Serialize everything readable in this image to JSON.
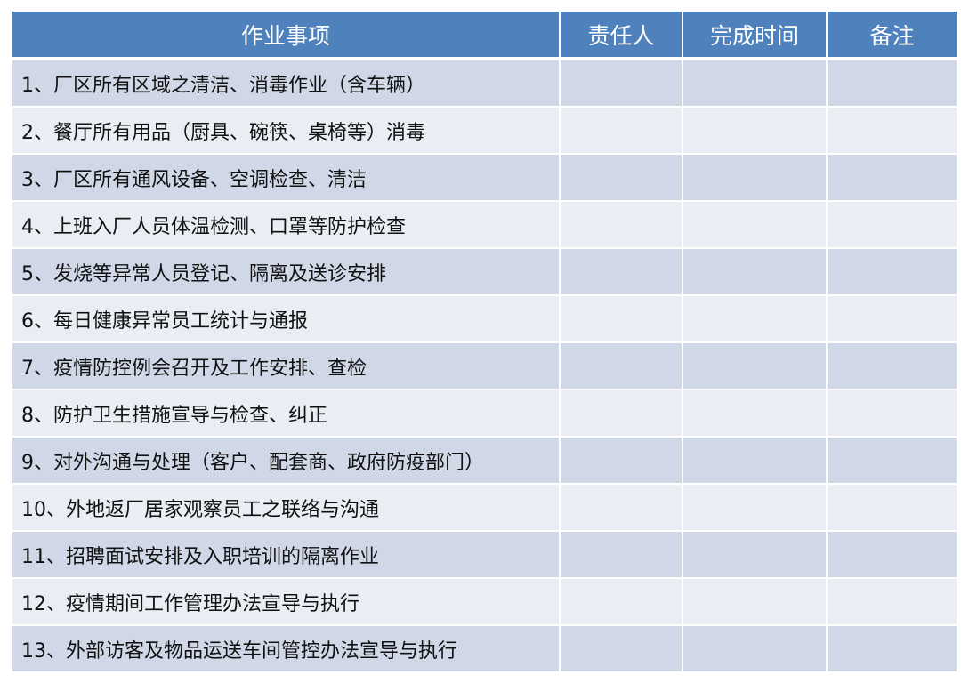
{
  "table": {
    "headers": [
      "作业事项",
      "责任人",
      "完成时间",
      "备注"
    ],
    "rows": [
      "1、厂区所有区域之清洁、消毒作业（含车辆）",
      "2、餐厅所有用品（厨具、碗筷、桌椅等）消毒",
      "3、厂区所有通风设备、空调检查、清洁",
      "4、上班入厂人员体温检测、口罩等防护检查",
      "5、发烧等异常人员登记、隔离及送诊安排",
      "6、每日健康异常员工统计与通报",
      "7、疫情防控例会召开及工作安排、查检",
      "8、防护卫生措施宣导与检查、纠正",
      "9、对外沟通与处理（客户、配套商、政府防疫部门）",
      "10、外地返厂居家观察员工之联络与沟通",
      "11、招聘面试安排及入职培训的隔离作业",
      "12、疫情期间工作管理办法宣导与执行",
      "13、外部访客及物品运送车间管控办法宣导与执行"
    ]
  },
  "colors": {
    "header": "#4f81bd",
    "row_odd": "#d0d8e8",
    "row_even": "#e9edf4"
  }
}
